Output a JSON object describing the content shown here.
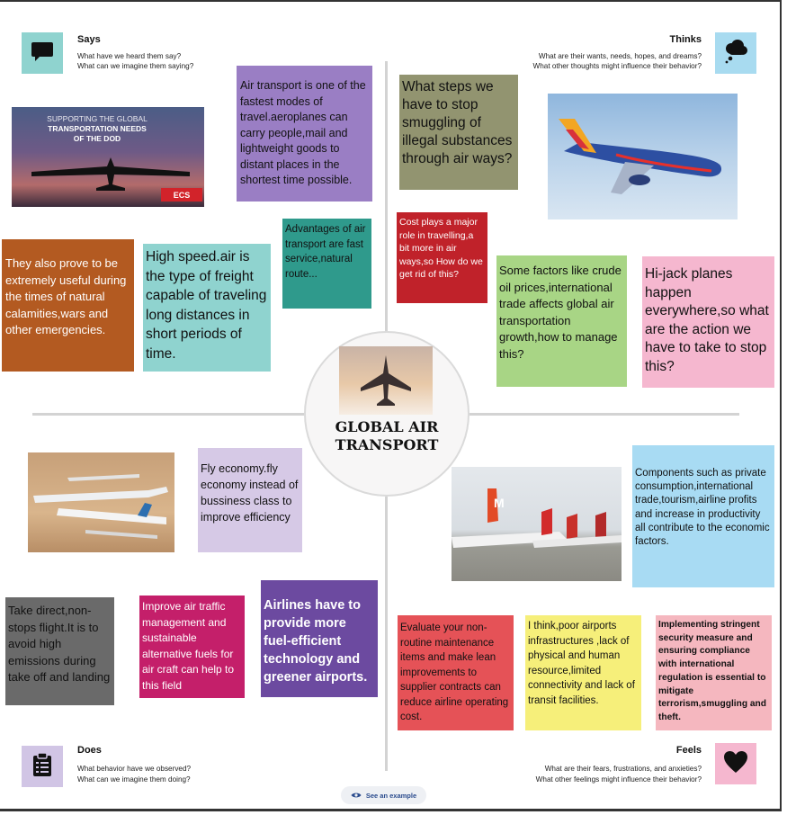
{
  "quadrants": {
    "says": {
      "title": "Says",
      "line1": "What have we heard them say?",
      "line2": "What can we imagine them saying?",
      "icon": "speech-bubble-icon",
      "icon_bg": "#8fd3cf"
    },
    "thinks": {
      "title": "Thinks",
      "line1": "What are their wants, needs, hopes, and dreams?",
      "line2": "What other thoughts might influence their behavior?",
      "icon": "thought-cloud-icon",
      "icon_bg": "#a8dbf0"
    },
    "does": {
      "title": "Does",
      "line1": "What behavior have we observed?",
      "line2": "What can we imagine them doing?",
      "icon": "clipboard-icon",
      "icon_bg": "#d1c5e5"
    },
    "feels": {
      "title": "Feels",
      "line1": "What are their fears, frustrations, and anxieties?",
      "line2": "What other feelings might influence their behavior?",
      "icon": "heart-icon",
      "icon_bg": "#f5b7cf"
    }
  },
  "center": {
    "title": "GLOBAL AIR TRANSPORT"
  },
  "says_notes": [
    {
      "text": "Air transport is one of the fastest modes of travel.aeroplanes can carry people,mail and lightweight goods to distant places in the shortest time possible.",
      "color": "#9a7ec4"
    },
    {
      "text": "Advantages of air transport are fast service,natural route...",
      "color": "#2f9a8c"
    },
    {
      "text": "They also prove to be extremely useful during the times of natural calamities,wars and other emergencies.",
      "color": "#b35a21"
    },
    {
      "text": "High speed.air is the type of freight capable of traveling long distances in short periods of time.",
      "color": "#8fd3cf"
    }
  ],
  "thinks_notes": [
    {
      "text": "What steps  we have to stop smuggling of illegal substances through air ways?",
      "color": "#929470"
    },
    {
      "text": "Cost plays a major role in travelling,a bit more in air ways,so How do we get rid of this?",
      "color": "#c0222a"
    },
    {
      "text": "Some factors like crude oil prices,international trade affects global air transportation growth,how to manage this?",
      "color": "#a8d585"
    },
    {
      "text": "Hi-jack planes happen everywhere,so what are the action we have to take to stop this?",
      "color": "#f5b7cf"
    }
  ],
  "does_notes": [
    {
      "text": "Fly economy.fly economy instead of bussiness class to improve efficiency",
      "color": "#d6c9e6"
    },
    {
      "text": "Take direct,non-stops flight.It is to avoid high emissions during take off and landing",
      "color": "#6a6a6a"
    },
    {
      "text": "Improve air traffic management and sustainable alternative fuels for air craft can help to this field",
      "color": "#c41f6a"
    },
    {
      "text": "Airlines have to provide more fuel-efficient technology and greener airports.",
      "color": "#6c4aa0"
    }
  ],
  "feels_notes": [
    {
      "text": "Components such as private consumption,international trade,tourism,airline profits and increase in productivity all contribute to the economic factors.",
      "color": "#a8dbf3"
    },
    {
      "text": "Evaluate your non-routine maintenance items and make lean improvements to supplier contracts can reduce airline operating cost.",
      "color": "#e55257"
    },
    {
      "text": "I think,poor airports infrastructures ,lack of physical and human resource,limited connectivity and lack of transit facilities.",
      "color": "#f6ef7a"
    },
    {
      "text": "Implementing stringent security measure and ensuring compliance with international regulation is essential to mitigate terrorism,smuggling and theft.",
      "color": "#f5b7bf"
    }
  ],
  "photos": {
    "cargo_banner": {
      "line1": "SUPPORTING THE GLOBAL",
      "line2": "TRANSPORTATION NEEDS",
      "line3": "OF THE DOD",
      "logo": "ECS"
    },
    "airline_tail_mark": "M"
  },
  "example_button": {
    "label": "See an example",
    "icon": "eye-icon"
  }
}
